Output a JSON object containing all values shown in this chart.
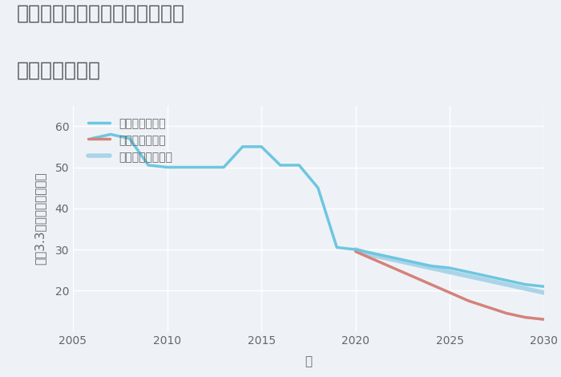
{
  "title_line1": "埼玉県入間郡毛呂山町目白台の",
  "title_line2": "土地の価格推移",
  "xlabel": "年",
  "ylabel": "坪（3.3㎡）単価（万円）",
  "background_color": "#eef2f7",
  "plot_bg_color": "#eef2f7",
  "grid_color": "#ffffff",
  "title_color": "#555555",
  "axis_label_color": "#666666",
  "tick_color": "#666666",
  "good_scenario": {
    "label": "グッドシナリオ",
    "color": "#6ec6e0",
    "linewidth": 2.5,
    "x": [
      2006,
      2007,
      2008,
      2009,
      2010,
      2011,
      2012,
      2013,
      2014,
      2015,
      2016,
      2017,
      2018,
      2019,
      2020,
      2021,
      2022,
      2023,
      2024,
      2025,
      2026,
      2027,
      2028,
      2029,
      2030
    ],
    "y": [
      57,
      58,
      57,
      50.5,
      50,
      50,
      50,
      50,
      55,
      55,
      50.5,
      50.5,
      45,
      30.5,
      30,
      29,
      28,
      27,
      26,
      25.5,
      24.5,
      23.5,
      22.5,
      21.5,
      21
    ]
  },
  "bad_scenario": {
    "label": "バッドシナリオ",
    "color": "#d4827a",
    "linewidth": 2.5,
    "x": [
      2020,
      2021,
      2022,
      2023,
      2024,
      2025,
      2026,
      2027,
      2028,
      2029,
      2030
    ],
    "y": [
      29.5,
      27.5,
      25.5,
      23.5,
      21.5,
      19.5,
      17.5,
      16,
      14.5,
      13.5,
      13
    ]
  },
  "normal_scenario": {
    "label": "ノーマルシナリオ",
    "color": "#aad4e8",
    "linewidth": 4.0,
    "x": [
      2020,
      2021,
      2022,
      2023,
      2024,
      2025,
      2026,
      2027,
      2028,
      2029,
      2030
    ],
    "y": [
      30,
      28.5,
      27.5,
      26.5,
      25.5,
      24.5,
      23.5,
      22.5,
      21.5,
      20.5,
      19.5
    ]
  },
  "xlim": [
    2005,
    2030
  ],
  "ylim": [
    10,
    65
  ],
  "yticks": [
    20,
    30,
    40,
    50,
    60
  ],
  "xticks": [
    2005,
    2010,
    2015,
    2020,
    2025,
    2030
  ],
  "figsize": [
    7.0,
    4.7
  ],
  "dpi": 100,
  "title_fontsize": 18,
  "axis_fontsize": 11,
  "tick_fontsize": 10,
  "legend_fontsize": 10
}
